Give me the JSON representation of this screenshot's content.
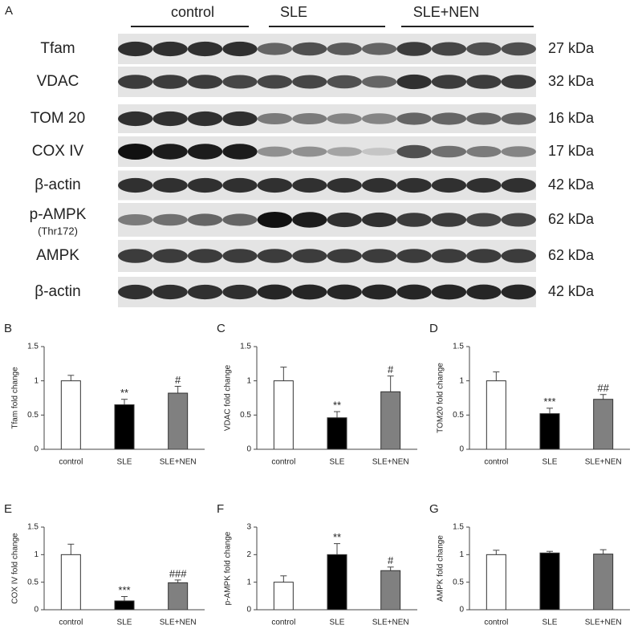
{
  "blot": {
    "panel": "A",
    "groups": [
      "control",
      "SLE",
      "SLE+NEN"
    ],
    "rows": [
      {
        "label": "Tfam",
        "kda": "27 kDa"
      },
      {
        "label": "VDAC",
        "kda": "32 kDa"
      },
      {
        "label": "TOM 20",
        "kda": "16 kDa"
      },
      {
        "label": "COX IV",
        "kda": "17 kDa"
      },
      {
        "label": "β-actin",
        "kda": "42 kDa"
      },
      {
        "label": "p-AMPK",
        "sublabel": "(Thr172)",
        "kda": "62 kDa"
      },
      {
        "label": "AMPK",
        "kda": "62 kDa"
      },
      {
        "label": "β-actin",
        "kda": "42 kDa"
      }
    ]
  },
  "chart_data": [
    {
      "type": "bar",
      "panel": "B",
      "ylabel": "Tfam fold change",
      "categories": [
        "control",
        "SLE",
        "SLE+NEN"
      ],
      "values": [
        1.0,
        0.65,
        0.82
      ],
      "errors": [
        0.08,
        0.08,
        0.1
      ],
      "annotations": [
        null,
        "**",
        "#"
      ],
      "colors": [
        "#ffffff",
        "#000000",
        "#808080"
      ],
      "ylim": [
        0,
        1.5
      ],
      "yticks": [
        0,
        0.5,
        1,
        1.5
      ]
    },
    {
      "type": "bar",
      "panel": "C",
      "ylabel": "VDAC fold change",
      "categories": [
        "control",
        "SLE",
        "SLE+NEN"
      ],
      "values": [
        1.0,
        0.46,
        0.84
      ],
      "errors": [
        0.2,
        0.09,
        0.23
      ],
      "annotations": [
        null,
        "**",
        "#"
      ],
      "colors": [
        "#ffffff",
        "#000000",
        "#808080"
      ],
      "ylim": [
        0,
        1.5
      ],
      "yticks": [
        0,
        0.5,
        1,
        1.5
      ]
    },
    {
      "type": "bar",
      "panel": "D",
      "ylabel": "TOM20 fold change",
      "categories": [
        "control",
        "SLE",
        "SLE+NEN"
      ],
      "values": [
        1.0,
        0.52,
        0.73
      ],
      "errors": [
        0.13,
        0.08,
        0.07
      ],
      "annotations": [
        null,
        "***",
        "##"
      ],
      "colors": [
        "#ffffff",
        "#000000",
        "#808080"
      ],
      "ylim": [
        0,
        1.5
      ],
      "yticks": [
        0,
        0.5,
        1,
        1.5
      ]
    },
    {
      "type": "bar",
      "panel": "E",
      "ylabel": "COX IV fold change",
      "categories": [
        "control",
        "SLE",
        "SLE+NEN"
      ],
      "values": [
        1.0,
        0.16,
        0.49
      ],
      "errors": [
        0.19,
        0.08,
        0.05
      ],
      "annotations": [
        null,
        "***",
        "###"
      ],
      "colors": [
        "#ffffff",
        "#000000",
        "#808080"
      ],
      "ylim": [
        0,
        1.5
      ],
      "yticks": [
        0,
        0.5,
        1,
        1.5
      ]
    },
    {
      "type": "bar",
      "panel": "F",
      "ylabel": "p-AMPK fold change",
      "categories": [
        "control",
        "SLE",
        "SLE+NEN"
      ],
      "values": [
        1.0,
        2.0,
        1.42
      ],
      "errors": [
        0.23,
        0.4,
        0.13
      ],
      "annotations": [
        null,
        "**",
        "#"
      ],
      "colors": [
        "#ffffff",
        "#000000",
        "#808080"
      ],
      "ylim": [
        0,
        3
      ],
      "yticks": [
        0,
        1,
        2,
        3
      ]
    },
    {
      "type": "bar",
      "panel": "G",
      "ylabel": "AMPK fold change",
      "categories": [
        "control",
        "SLE",
        "SLE+NEN"
      ],
      "values": [
        1.0,
        1.03,
        1.01
      ],
      "errors": [
        0.08,
        0.03,
        0.08
      ],
      "annotations": [
        null,
        null,
        null
      ],
      "colors": [
        "#ffffff",
        "#000000",
        "#808080"
      ],
      "ylim": [
        0,
        1.5
      ],
      "yticks": [
        0,
        0.5,
        1,
        1.5
      ]
    }
  ]
}
